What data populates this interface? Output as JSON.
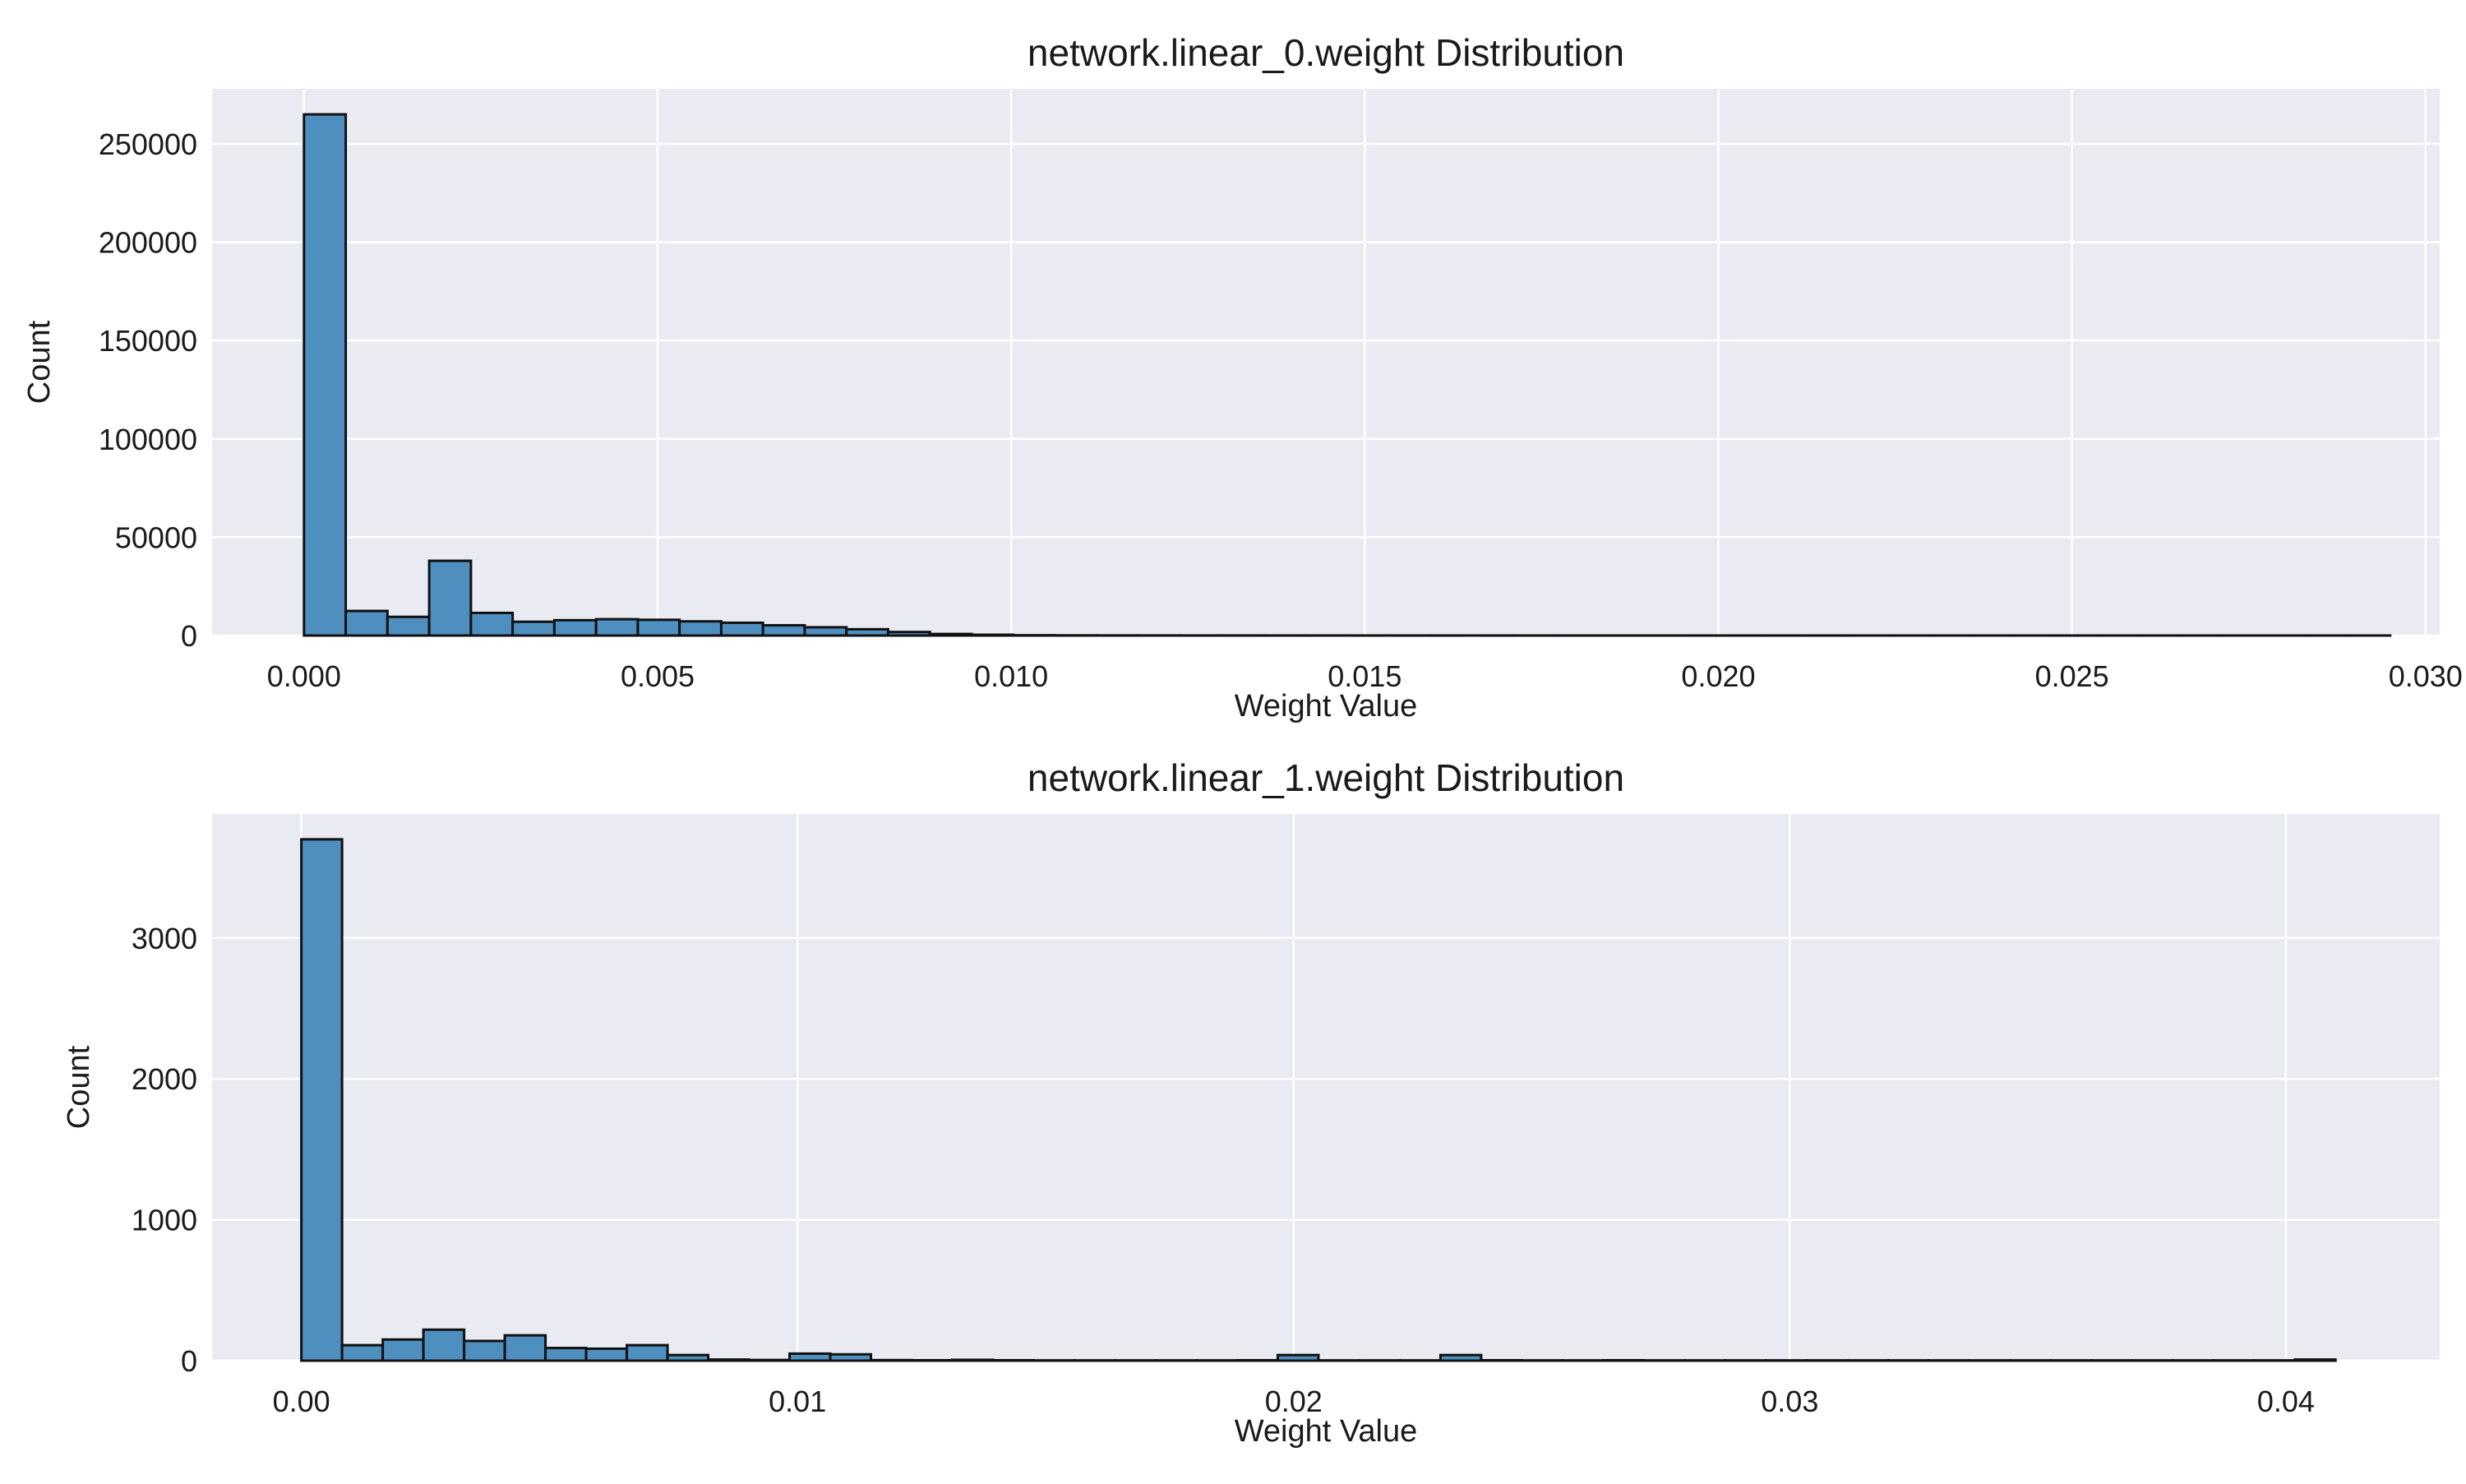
{
  "chart_data": [
    {
      "type": "bar",
      "title": "network.linear_0.weight Distribution",
      "xlabel": "Weight Value",
      "ylabel": "Count",
      "xlim": [
        -0.0013,
        0.0302
      ],
      "ylim": [
        0,
        278000
      ],
      "xticks": [
        0.0,
        0.005,
        0.01,
        0.015,
        0.02,
        0.025,
        0.03
      ],
      "xtick_labels": [
        "0.000",
        "0.005",
        "0.010",
        "0.015",
        "0.020",
        "0.025",
        "0.030"
      ],
      "yticks": [
        0,
        50000,
        100000,
        150000,
        200000,
        250000
      ],
      "ytick_labels": [
        "0",
        "50000",
        "100000",
        "150000",
        "200000",
        "250000"
      ],
      "grid": true,
      "bin_start": 0.0,
      "bin_width": 0.00059,
      "values": [
        265000,
        12500,
        9500,
        38000,
        11500,
        7000,
        7800,
        8300,
        8000,
        7200,
        6500,
        5200,
        4200,
        3200,
        1800,
        800,
        400,
        150,
        80,
        50,
        40,
        30,
        25,
        20,
        20,
        15,
        15,
        12,
        12,
        10,
        10,
        8,
        8,
        6,
        6,
        5,
        5,
        4,
        4,
        3,
        3,
        3,
        2,
        2,
        2,
        2,
        1,
        1,
        1,
        1
      ]
    },
    {
      "type": "bar",
      "title": "network.linear_1.weight Distribution",
      "xlabel": "Weight Value",
      "ylabel": "Count",
      "xlim": [
        -0.0018,
        0.0431
      ],
      "ylim": [
        0,
        3880
      ],
      "xticks": [
        0.0,
        0.01,
        0.02,
        0.03,
        0.04
      ],
      "xtick_labels": [
        "0.00",
        "0.01",
        "0.02",
        "0.03",
        "0.04"
      ],
      "yticks": [
        0,
        1000,
        2000,
        3000
      ],
      "ytick_labels": [
        "0",
        "1000",
        "2000",
        "3000"
      ],
      "grid": true,
      "bin_start": 0.0,
      "bin_width": 0.00082,
      "values": [
        3700,
        110,
        150,
        220,
        140,
        180,
        90,
        85,
        110,
        40,
        8,
        5,
        50,
        45,
        4,
        3,
        6,
        3,
        2,
        2,
        2,
        2,
        2,
        3,
        40,
        2,
        2,
        2,
        40,
        3,
        2,
        2,
        3,
        2,
        2,
        2,
        2,
        2,
        2,
        2,
        2,
        2,
        2,
        2,
        2,
        2,
        2,
        2,
        2,
        8
      ]
    }
  ]
}
